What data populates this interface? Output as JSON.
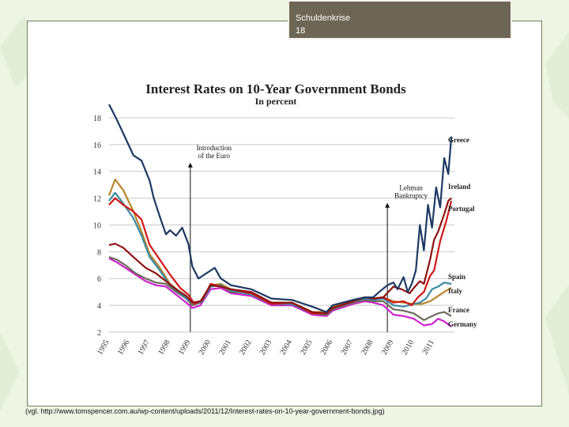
{
  "slide": {
    "tag_title": "Schuldenkrise",
    "tag_number": "18",
    "caption": "(vgl. http://www.tomspencer.com.au/wp-content/uploads/2011/12/Interest-rates-on-10-year-government-bonds.jpg)"
  },
  "colors": {
    "background": "#eef5e4",
    "tag": "#6e6655",
    "Greece": "#1c3a63",
    "Ireland": "#8e1212",
    "Portugal": "#d01818",
    "Spain": "#3c8aa0",
    "Italy": "#b8852c",
    "France": "#6e6a5a",
    "Germany": "#cc22cc"
  },
  "chart_data": {
    "type": "line",
    "title": "Interest Rates on 10-Year Government Bonds",
    "subtitle": "In percent",
    "xlabel": "",
    "ylabel": "",
    "xlim": [
      1995,
      2012
    ],
    "ylim": [
      2,
      19
    ],
    "yticks": [
      2,
      4,
      6,
      8,
      10,
      12,
      14,
      16,
      18
    ],
    "xticks": [
      "1995",
      "1996",
      "1997",
      "1998",
      "1999",
      "2000",
      "2001",
      "2002",
      "2003",
      "2004",
      "2005",
      "2006",
      "2007",
      "2008",
      "2009",
      "2010",
      "2011"
    ],
    "gridlines": "horizontal",
    "annotations": [
      {
        "text": [
          "Introduction",
          "of the Euro"
        ],
        "x": 1999.0,
        "y_text": 15.0
      },
      {
        "text": [
          "Lehman",
          "Bankruptcy"
        ],
        "x": 2008.7,
        "y_text": 12.0
      }
    ],
    "series": [
      {
        "name": "Greece",
        "x": [
          1995.0,
          1995.4,
          1995.8,
          1996.2,
          1996.6,
          1997.0,
          1997.2,
          1997.5,
          1997.8,
          1998.0,
          1998.3,
          1998.6,
          1998.9,
          1999.1,
          1999.4,
          1999.8,
          2000.2,
          2000.5,
          2000.8,
          2001,
          2002,
          2003,
          2004,
          2005,
          2005.7,
          2006,
          2007,
          2007.6,
          2008,
          2008.3,
          2008.7,
          2009.0,
          2009.2,
          2009.5,
          2009.7,
          2009.9,
          2010.1,
          2010.3,
          2010.5,
          2010.7,
          2010.9,
          2011.1,
          2011.3,
          2011.5,
          2011.7,
          2011.85
        ],
        "y": [
          19.0,
          17.8,
          16.5,
          15.2,
          14.8,
          13.3,
          12.0,
          10.6,
          9.3,
          9.6,
          9.2,
          9.8,
          8.6,
          6.9,
          6.0,
          6.4,
          6.8,
          6.0,
          5.7,
          5.5,
          5.2,
          4.5,
          4.4,
          3.9,
          3.5,
          4.0,
          4.4,
          4.6,
          4.6,
          5.0,
          5.5,
          5.7,
          5.2,
          6.1,
          5.0,
          5.6,
          6.6,
          10.0,
          8.1,
          11.5,
          9.8,
          12.8,
          11.3,
          15.0,
          13.8,
          16.6
        ]
      },
      {
        "name": "Ireland",
        "x": [
          1995.0,
          1995.3,
          1995.7,
          1996.2,
          1996.8,
          1997.3,
          1997.8,
          1998.3,
          1998.8,
          1999.1,
          1999.5,
          2000,
          2000.5,
          2001,
          2002,
          2003,
          2004,
          2005,
          2005.7,
          2006,
          2007,
          2007.6,
          2008,
          2008.5,
          2009,
          2009.4,
          2009.8,
          2010.0,
          2010.3,
          2010.5,
          2010.8,
          2011.0,
          2011.2,
          2011.5,
          2011.7,
          2011.85
        ],
        "y": [
          8.5,
          8.6,
          8.3,
          7.6,
          6.8,
          6.4,
          5.8,
          5.2,
          4.7,
          4.2,
          4.3,
          5.5,
          5.4,
          5.2,
          5.0,
          4.2,
          4.2,
          3.5,
          3.4,
          3.8,
          4.3,
          4.6,
          4.5,
          4.6,
          5.4,
          5.2,
          4.9,
          5.3,
          5.8,
          5.6,
          7.4,
          8.9,
          9.5,
          10.8,
          11.8,
          12.0
        ]
      },
      {
        "name": "Portugal",
        "x": [
          1995.0,
          1995.3,
          1995.7,
          1996.2,
          1996.6,
          1997.0,
          1997.5,
          1998.0,
          1998.5,
          1998.9,
          1999.2,
          1999.6,
          2000,
          2000.5,
          2001,
          2002,
          2003,
          2004,
          2005,
          2005.7,
          2006,
          2007,
          2007.6,
          2008,
          2008.5,
          2009,
          2009.5,
          2009.9,
          2010.2,
          2010.5,
          2010.8,
          2011.0,
          2011.3,
          2011.6,
          2011.85
        ],
        "y": [
          11.5,
          12.0,
          11.5,
          11.0,
          10.4,
          8.5,
          7.4,
          6.3,
          5.3,
          4.8,
          4.1,
          4.4,
          5.6,
          5.4,
          5.2,
          4.9,
          4.1,
          4.2,
          3.4,
          3.4,
          3.8,
          4.3,
          4.6,
          4.5,
          4.6,
          4.2,
          4.3,
          4.0,
          4.6,
          5.0,
          6.2,
          6.6,
          8.8,
          10.3,
          11.8
        ]
      },
      {
        "name": "Spain",
        "x": [
          1995.0,
          1995.3,
          1995.7,
          1996.2,
          1996.6,
          1997.0,
          1997.5,
          1998.0,
          1998.5,
          1998.9,
          1999.2,
          1999.6,
          2000,
          2000.5,
          2001,
          2002,
          2003,
          2004,
          2005,
          2005.7,
          2006,
          2007,
          2007.6,
          2008,
          2008.5,
          2009,
          2009.5,
          2010,
          2010.3,
          2010.6,
          2010.9,
          2011.2,
          2011.5,
          2011.85
        ],
        "y": [
          11.8,
          12.4,
          11.6,
          10.5,
          9.2,
          7.6,
          6.6,
          5.5,
          4.9,
          4.4,
          4.1,
          4.3,
          5.4,
          5.5,
          5.1,
          4.8,
          4.1,
          4.1,
          3.4,
          3.4,
          3.8,
          4.3,
          4.5,
          4.4,
          4.5,
          4.0,
          3.9,
          4.1,
          4.2,
          4.5,
          5.2,
          5.4,
          5.7,
          5.6
        ]
      },
      {
        "name": "Italy",
        "x": [
          1995.0,
          1995.3,
          1995.7,
          1996.2,
          1996.6,
          1997.0,
          1997.5,
          1998.0,
          1998.5,
          1998.9,
          1999.2,
          1999.6,
          2000,
          2000.5,
          2001,
          2002,
          2003,
          2004,
          2005,
          2005.7,
          2006,
          2007,
          2007.6,
          2008,
          2008.5,
          2009,
          2009.5,
          2010,
          2010.4,
          2010.8,
          2011.2,
          2011.5,
          2011.85
        ],
        "y": [
          12.2,
          13.4,
          12.6,
          11.0,
          9.5,
          7.8,
          6.8,
          5.6,
          5.0,
          4.4,
          4.1,
          4.4,
          5.5,
          5.6,
          5.2,
          4.9,
          4.2,
          4.2,
          3.5,
          3.5,
          3.9,
          4.4,
          4.6,
          4.5,
          4.6,
          4.3,
          4.2,
          4.1,
          4.1,
          4.3,
          4.7,
          5.0,
          5.3
        ]
      },
      {
        "name": "France",
        "x": [
          1995.0,
          1995.4,
          1995.8,
          1996.3,
          1996.8,
          1997.3,
          1997.8,
          1998.3,
          1998.8,
          1999.1,
          1999.5,
          2000,
          2000.5,
          2001,
          2002,
          2003,
          2004,
          2005,
          2005.7,
          2006,
          2007,
          2007.6,
          2008,
          2008.5,
          2009,
          2009.5,
          2010,
          2010.5,
          2010.9,
          2011.2,
          2011.5,
          2011.85
        ],
        "y": [
          7.6,
          7.4,
          7.0,
          6.4,
          6.0,
          5.7,
          5.6,
          5.0,
          4.5,
          4.0,
          4.2,
          5.4,
          5.5,
          5.0,
          4.9,
          4.1,
          4.1,
          3.4,
          3.3,
          3.7,
          4.2,
          4.4,
          4.3,
          4.3,
          3.7,
          3.6,
          3.4,
          2.9,
          3.2,
          3.4,
          3.5,
          3.2
        ]
      },
      {
        "name": "Germany",
        "x": [
          1995.0,
          1995.4,
          1995.8,
          1996.3,
          1996.8,
          1997.3,
          1997.8,
          1998.3,
          1998.8,
          1999.1,
          1999.5,
          2000,
          2000.5,
          2001,
          2002,
          2003,
          2004,
          2005,
          2005.7,
          2006,
          2007,
          2007.6,
          2008,
          2008.5,
          2009,
          2009.5,
          2010,
          2010.5,
          2010.9,
          2011.2,
          2011.5,
          2011.85
        ],
        "y": [
          7.5,
          7.2,
          6.8,
          6.3,
          5.8,
          5.5,
          5.4,
          4.8,
          4.2,
          3.8,
          4.0,
          5.2,
          5.3,
          4.9,
          4.7,
          4.0,
          4.0,
          3.3,
          3.2,
          3.6,
          4.1,
          4.3,
          4.2,
          4.0,
          3.3,
          3.2,
          3.0,
          2.5,
          2.6,
          3.0,
          2.8,
          2.4
        ]
      }
    ]
  }
}
